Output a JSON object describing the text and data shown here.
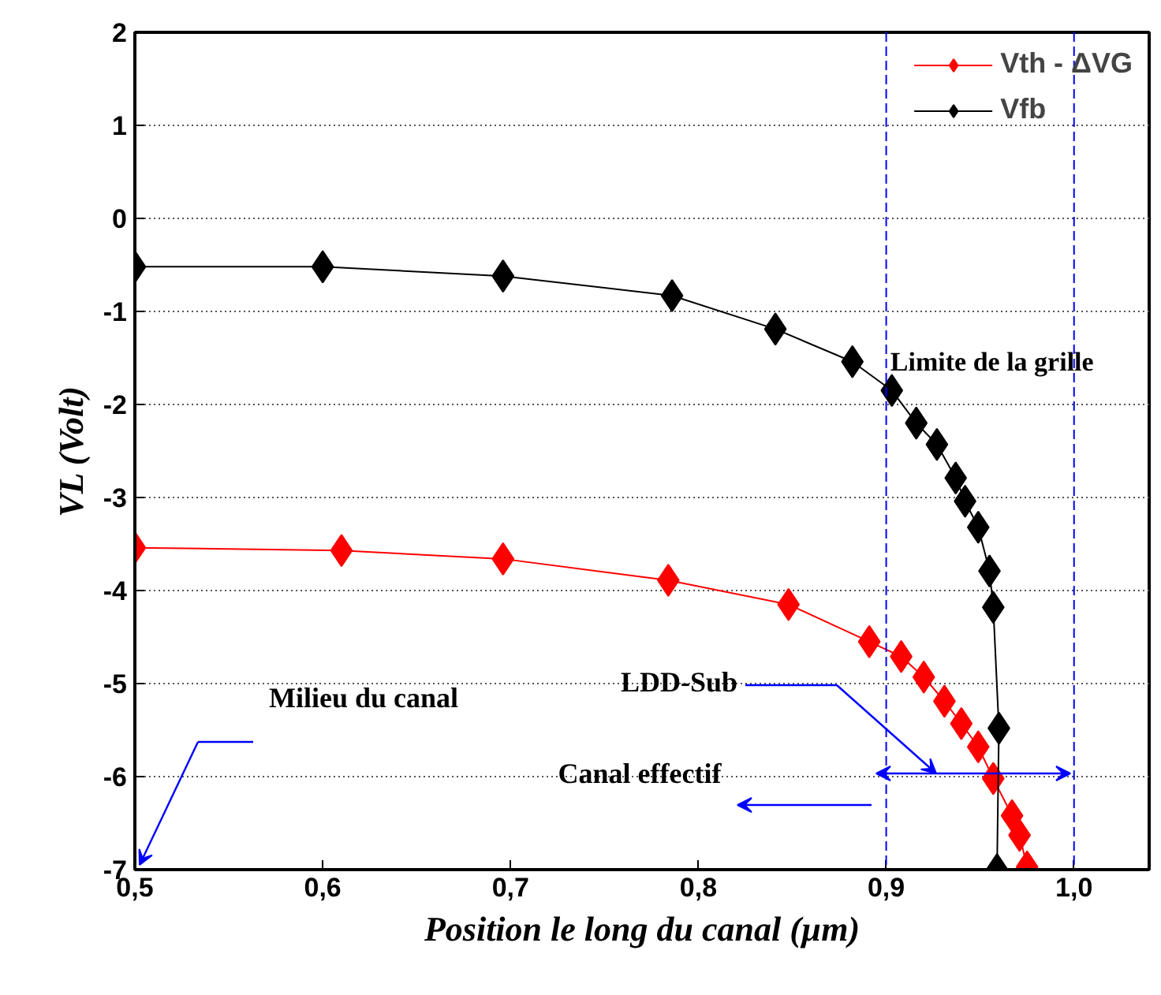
{
  "chart_data": {
    "type": "line",
    "xlabel": "Position le long du canal (µm)",
    "ylabel": "VL (Volt)",
    "xlim": [
      0.5,
      1.04
    ],
    "ylim": [
      -7,
      2
    ],
    "xticks": [
      {
        "value": 0.5,
        "label": "0,5"
      },
      {
        "value": 0.6,
        "label": "0,6"
      },
      {
        "value": 0.7,
        "label": "0,7"
      },
      {
        "value": 0.8,
        "label": "0,8"
      },
      {
        "value": 0.9,
        "label": "0,9"
      },
      {
        "value": 1.0,
        "label": "1,0"
      }
    ],
    "yticks": [
      -7,
      -6,
      -5,
      -4,
      -3,
      -2,
      -1,
      0,
      1,
      2
    ],
    "grid": "y",
    "legend": "top right",
    "marker": "diamond",
    "line_style": "solid",
    "series": [
      {
        "name": "Vth - ΔVG",
        "color": "#ff0000",
        "x": [
          0.5,
          0.61,
          0.696,
          0.784,
          0.848,
          0.891,
          0.908,
          0.92,
          0.931,
          0.94,
          0.949,
          0.957,
          0.967,
          0.971,
          0.975
        ],
        "values": [
          -3.54,
          -3.57,
          -3.66,
          -3.89,
          -4.15,
          -4.55,
          -4.71,
          -4.93,
          -5.19,
          -5.43,
          -5.68,
          -6.02,
          -6.42,
          -6.63,
          -6.97
        ]
      },
      {
        "name": "Vfb",
        "color": "#000000",
        "x": [
          0.5,
          0.6,
          0.696,
          0.786,
          0.841,
          0.882,
          0.903,
          0.916,
          0.927,
          0.937,
          0.942,
          0.949,
          0.955,
          0.957,
          0.96,
          0.959
        ],
        "values": [
          -0.52,
          -0.52,
          -0.62,
          -0.83,
          -1.19,
          -1.54,
          -1.85,
          -2.2,
          -2.43,
          -2.79,
          -3.04,
          -3.32,
          -3.79,
          -4.18,
          -5.48,
          -7.0
        ]
      }
    ],
    "ref_lines": [
      {
        "axis": "x",
        "value": 0.9,
        "label": null,
        "color": "#0000ff",
        "line_style": "dashed"
      },
      {
        "axis": "x",
        "value": 1.0,
        "label": "Limite de la grille",
        "color": "#0000ff",
        "line_style": "dashed"
      }
    ],
    "annotations": [
      "Milieu du canal",
      "LDD-Sub",
      "Canal effectif"
    ]
  }
}
